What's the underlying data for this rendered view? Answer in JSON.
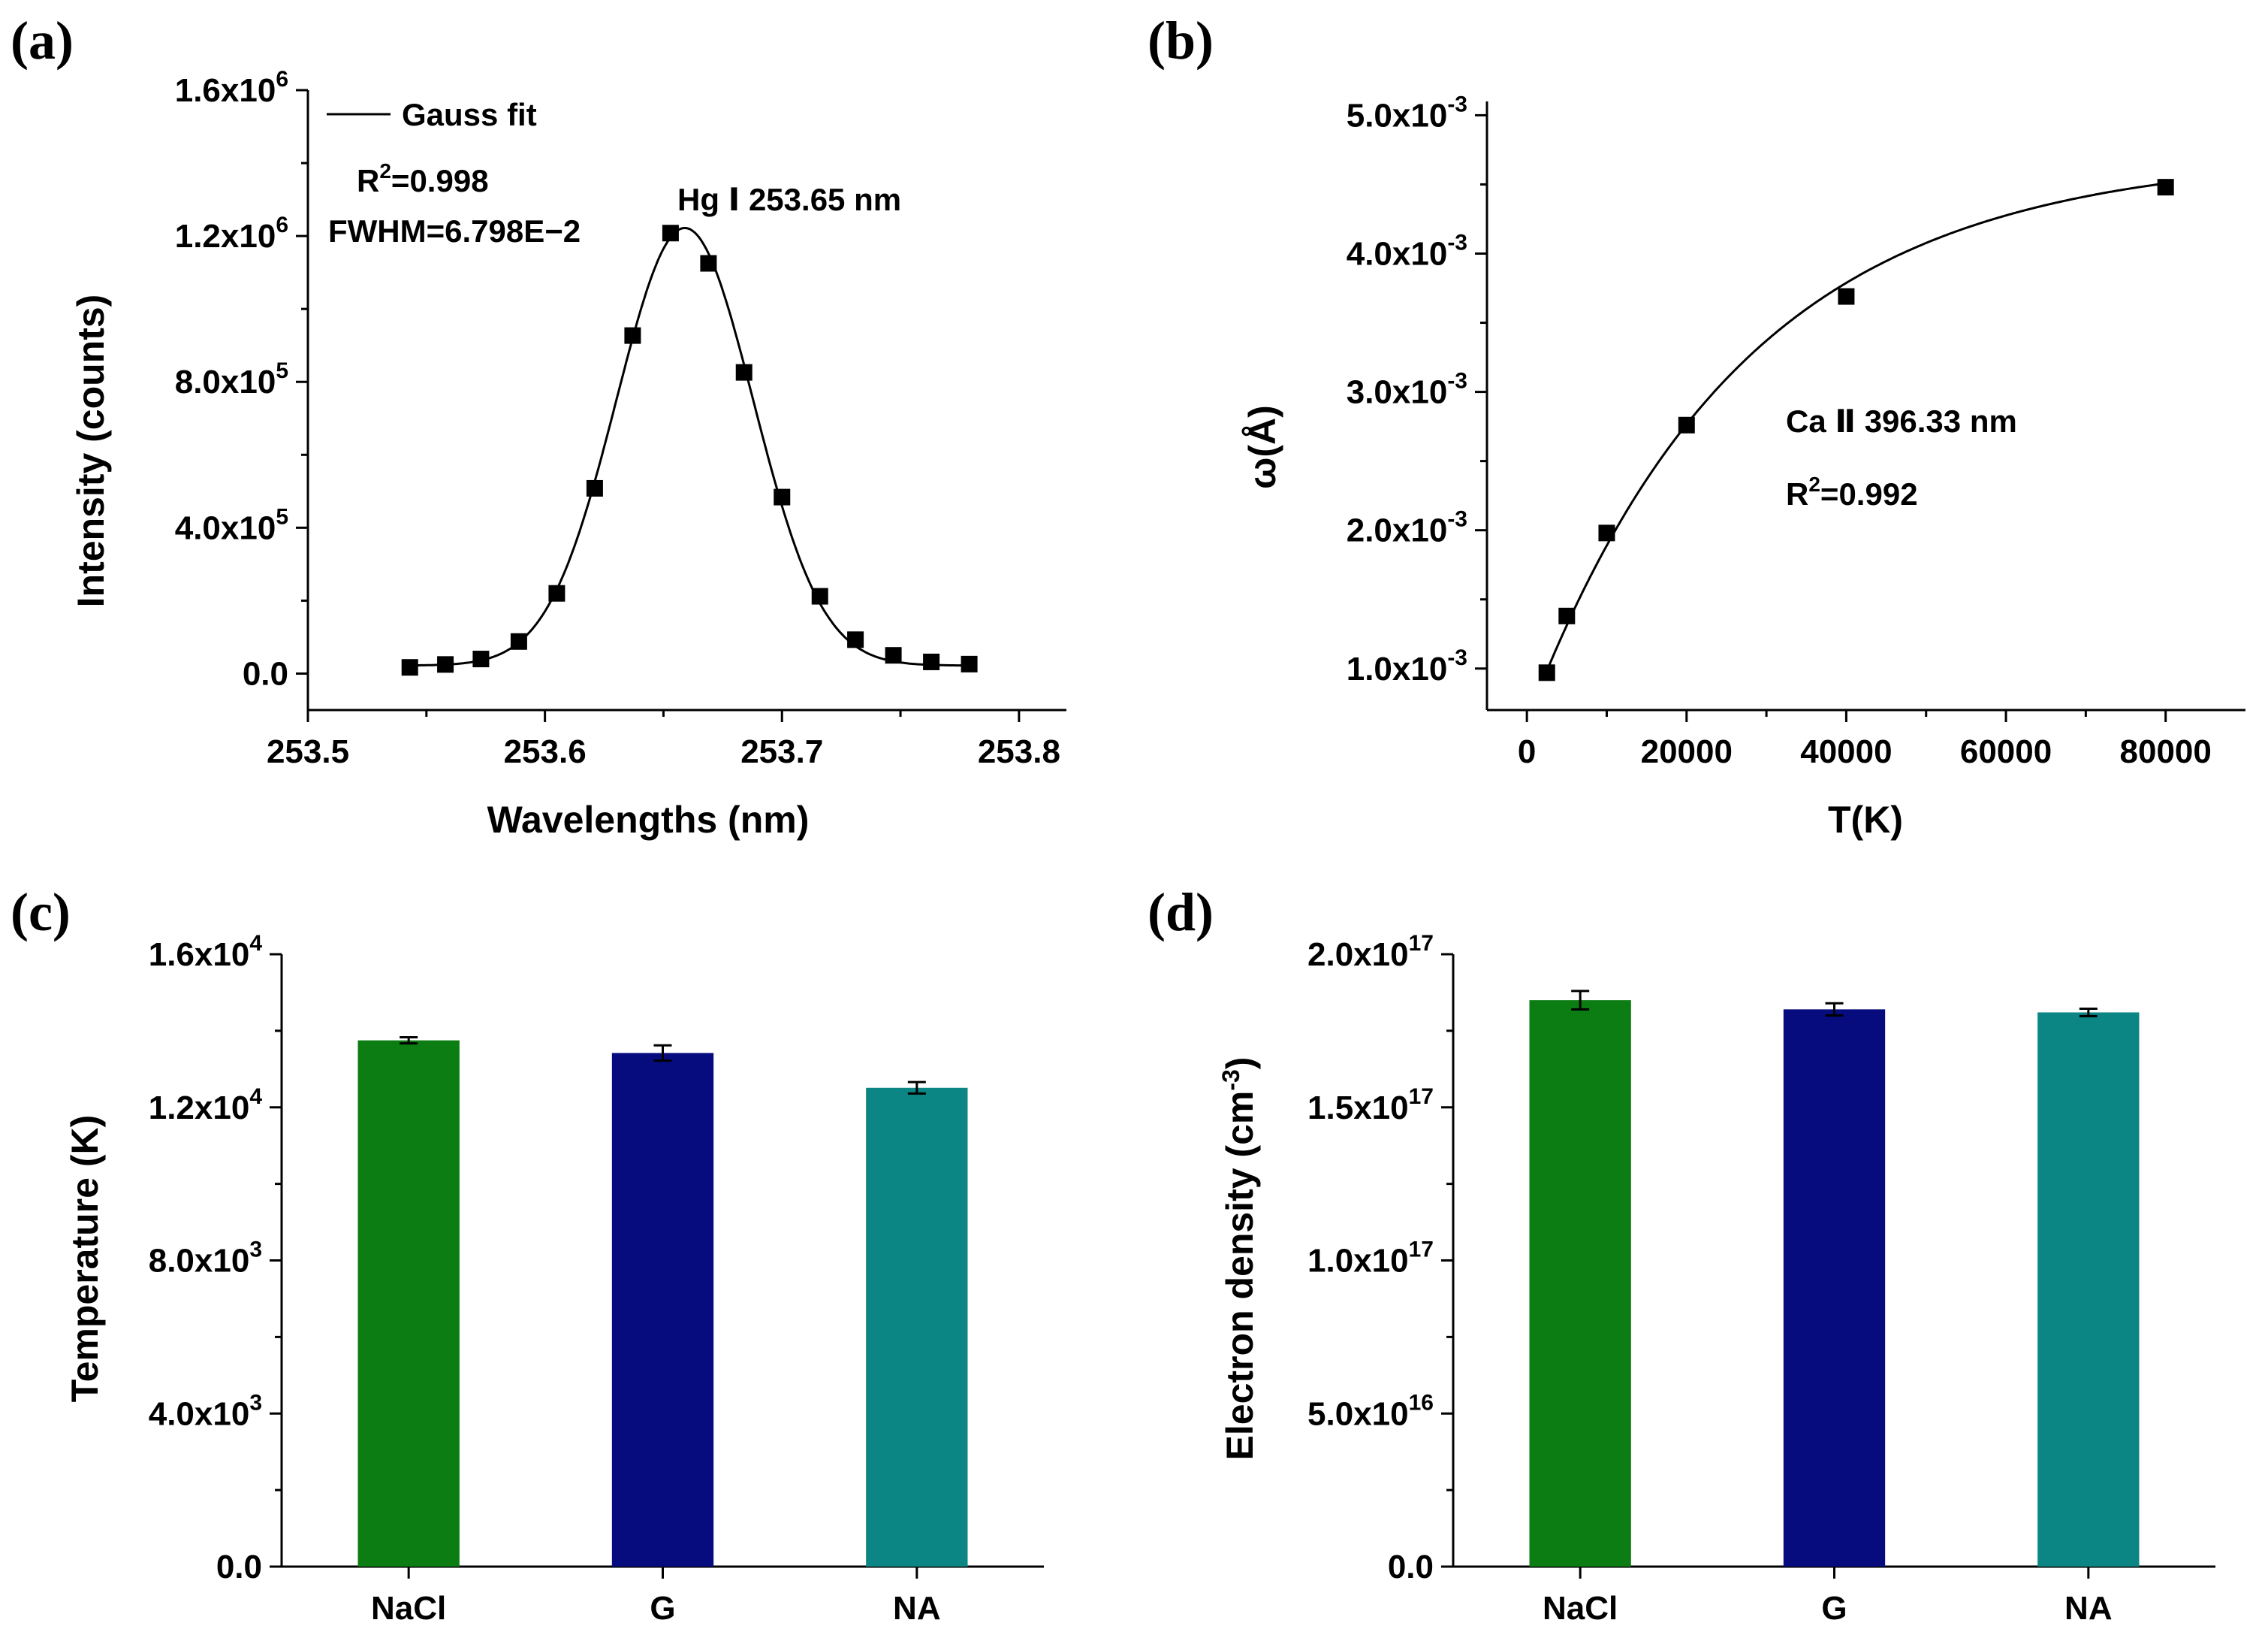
{
  "chart_data": [
    {
      "panel": "(a)",
      "type": "scatter",
      "xlabel": "Wavelengths (nm)",
      "ylabel": "Intensity (counts)",
      "xlim": [
        253.5,
        253.82
      ],
      "ylim": [
        -100000,
        1600000
      ],
      "xticks": [
        253.5,
        253.6,
        253.7,
        253.8
      ],
      "xtick_labels": [
        "253.5",
        "253.6",
        "253.7",
        "253.8"
      ],
      "yticks": [
        0,
        400000,
        800000,
        1200000,
        1600000
      ],
      "ytick_labels": [
        {
          "base": "0.0",
          "exp": ""
        },
        {
          "base": "4.0x10",
          "exp": "5"
        },
        {
          "base": "8.0x10",
          "exp": "5"
        },
        {
          "base": "1.2x10",
          "exp": "6"
        },
        {
          "base": "1.6x10",
          "exp": "6"
        }
      ],
      "legend": {
        "label": "Gauss fit",
        "position": "top-left"
      },
      "annotations": {
        "r2": {
          "base": "R",
          "sup": "2",
          "rest": "=0.998"
        },
        "fwhm": "FWHM=6.798E−2",
        "line": "Hg Ⅰ 253.65 nm"
      },
      "series": [
        {
          "name": "Data",
          "x": [
            253.543,
            253.558,
            253.573,
            253.589,
            253.605,
            253.621,
            253.637,
            253.653,
            253.669,
            253.684,
            253.7,
            253.716,
            253.731,
            253.747,
            253.763,
            253.779
          ],
          "y": [
            17000,
            25000,
            40000,
            88000,
            220000,
            508000,
            927000,
            1208000,
            1125000,
            826000,
            484000,
            212000,
            93000,
            50000,
            32000,
            26000
          ]
        }
      ],
      "fit": {
        "type": "gaussian",
        "y0": 22000,
        "A": 1200000,
        "xc": 253.659,
        "fwhm": 0.06798
      }
    },
    {
      "panel": "(b)",
      "type": "scatter",
      "xlabel": "T(K)",
      "ylabel": "ω(Å)",
      "xlim": [
        -5000,
        90000
      ],
      "ylim": [
        0.0007,
        0.0051
      ],
      "xticks": [
        0,
        20000,
        40000,
        60000,
        80000
      ],
      "xtick_labels": [
        "0",
        "20000",
        "40000",
        "60000",
        "80000"
      ],
      "yticks": [
        0.001,
        0.002,
        0.003,
        0.004,
        0.005
      ],
      "ytick_labels": [
        {
          "base": "1.0x10",
          "exp": "-3"
        },
        {
          "base": "2.0x10",
          "exp": "-3"
        },
        {
          "base": "3.0x10",
          "exp": "-3"
        },
        {
          "base": "4.0x10",
          "exp": "-3"
        },
        {
          "base": "5.0x10",
          "exp": "-3"
        }
      ],
      "annotations": {
        "line": "Ca Ⅱ 396.33 nm",
        "r2": {
          "base": "R",
          "sup": "2",
          "rest": "=0.992"
        }
      },
      "series": [
        {
          "name": "Data",
          "x": [
            2500,
            5000,
            10000,
            20000,
            40000,
            80000
          ],
          "y": [
            0.00097,
            0.00138,
            0.00198,
            0.00276,
            0.00369,
            0.00448
          ]
        }
      ],
      "fit": {
        "type": "exponential",
        "a": 0.00472,
        "b": 0.0041,
        "t": 27000
      }
    },
    {
      "panel": "(c)",
      "type": "bar",
      "xlabel": "",
      "ylabel": "Temperature (K)",
      "ylim": [
        0,
        16000
      ],
      "categories": [
        "NaCl",
        "G",
        "NA"
      ],
      "values": [
        13750,
        13420,
        12510
      ],
      "errors": [
        80,
        200,
        150
      ],
      "colors": [
        "#0b7d12",
        "#060c7e",
        "#0b8684"
      ],
      "yticks": [
        0,
        4000,
        8000,
        12000,
        16000
      ],
      "ytick_labels": [
        {
          "base": "0.0",
          "exp": ""
        },
        {
          "base": "4.0x10",
          "exp": "3"
        },
        {
          "base": "8.0x10",
          "exp": "3"
        },
        {
          "base": "1.2x10",
          "exp": "4"
        },
        {
          "base": "1.6x10",
          "exp": "4"
        }
      ]
    },
    {
      "panel": "(d)",
      "type": "bar",
      "xlabel": "",
      "ylabel": "Electron density (cm⁻³)",
      "ylabel_parts": {
        "base": "Electron density (cm",
        "sup": "-3",
        "close": ")"
      },
      "ylim": [
        0,
        2e+17
      ],
      "categories": [
        "NaCl",
        "G",
        "NA"
      ],
      "values": [
        1.85e+17,
        1.82e+17,
        1.81e+17
      ],
      "errors": [
        3000000000000000.0,
        2000000000000000.0,
        1200000000000000.0
      ],
      "colors": [
        "#0b7d12",
        "#060c7e",
        "#0b8684"
      ],
      "yticks": [
        0,
        5e+16,
        1e+17,
        1.5e+17,
        2e+17
      ],
      "ytick_labels": [
        {
          "base": "0.0",
          "exp": ""
        },
        {
          "base": "5.0x10",
          "exp": "16"
        },
        {
          "base": "1.0x10",
          "exp": "17"
        },
        {
          "base": "1.5x10",
          "exp": "17"
        },
        {
          "base": "2.0x10",
          "exp": "17"
        }
      ]
    }
  ]
}
